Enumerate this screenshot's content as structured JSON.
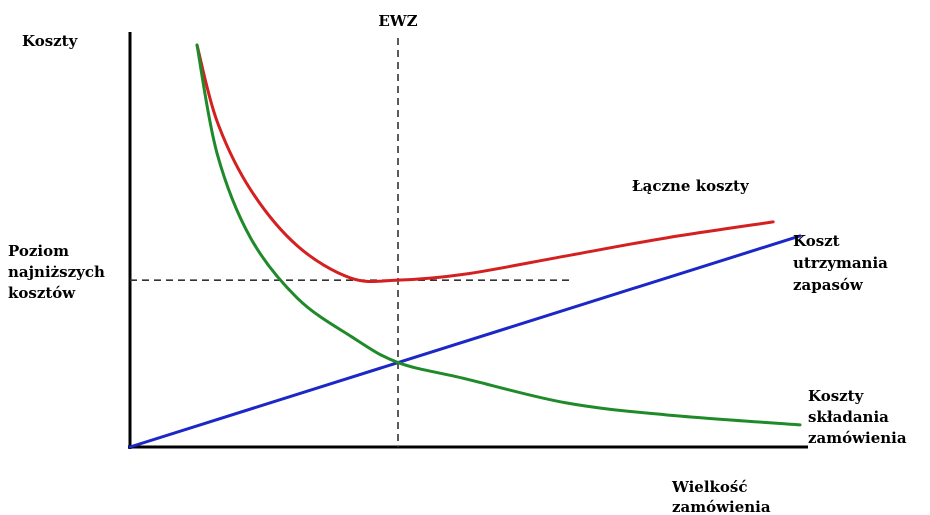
{
  "chart_data": {
    "type": "line",
    "title": "",
    "ylabel": "Koszty",
    "xlabel": [
      "Wielkość",
      "zamówienia"
    ],
    "marker_label": "EWZ",
    "min_cost_label": [
      "Poziom",
      "najniższych",
      "kosztów"
    ],
    "grid": false,
    "xlim": [
      0,
      10
    ],
    "ylim": [
      0,
      10
    ],
    "series": [
      {
        "name": [
          "Łączne koszty"
        ],
        "color": "#d42020",
        "x": [
          1.0,
          1.3,
          1.8,
          2.5,
          3.3,
          4.0,
          5.0,
          6.5,
          8.0,
          9.6
        ],
        "y": [
          10.0,
          8.1,
          6.4,
          5.0,
          4.2,
          4.15,
          4.3,
          4.75,
          5.2,
          5.6
        ]
      },
      {
        "name": [
          "Koszt",
          "utrzymania",
          "zapasów"
        ],
        "color": "#1b27c7",
        "x": [
          0,
          10
        ],
        "y": [
          0,
          5.25
        ]
      },
      {
        "name": [
          "Koszty",
          "składania",
          "zamówienia"
        ],
        "color": "#1f8a2a",
        "x": [
          1.0,
          1.3,
          1.8,
          2.5,
          3.3,
          4.0,
          5.0,
          6.5,
          8.0,
          10.0
        ],
        "y": [
          10.0,
          7.3,
          5.2,
          3.7,
          2.75,
          2.1,
          1.7,
          1.1,
          0.8,
          0.55
        ]
      }
    ],
    "optimum": {
      "x": 4.0,
      "y": 4.15
    },
    "line_colors": {
      "axes": "#000000",
      "guides": "#333333"
    }
  }
}
